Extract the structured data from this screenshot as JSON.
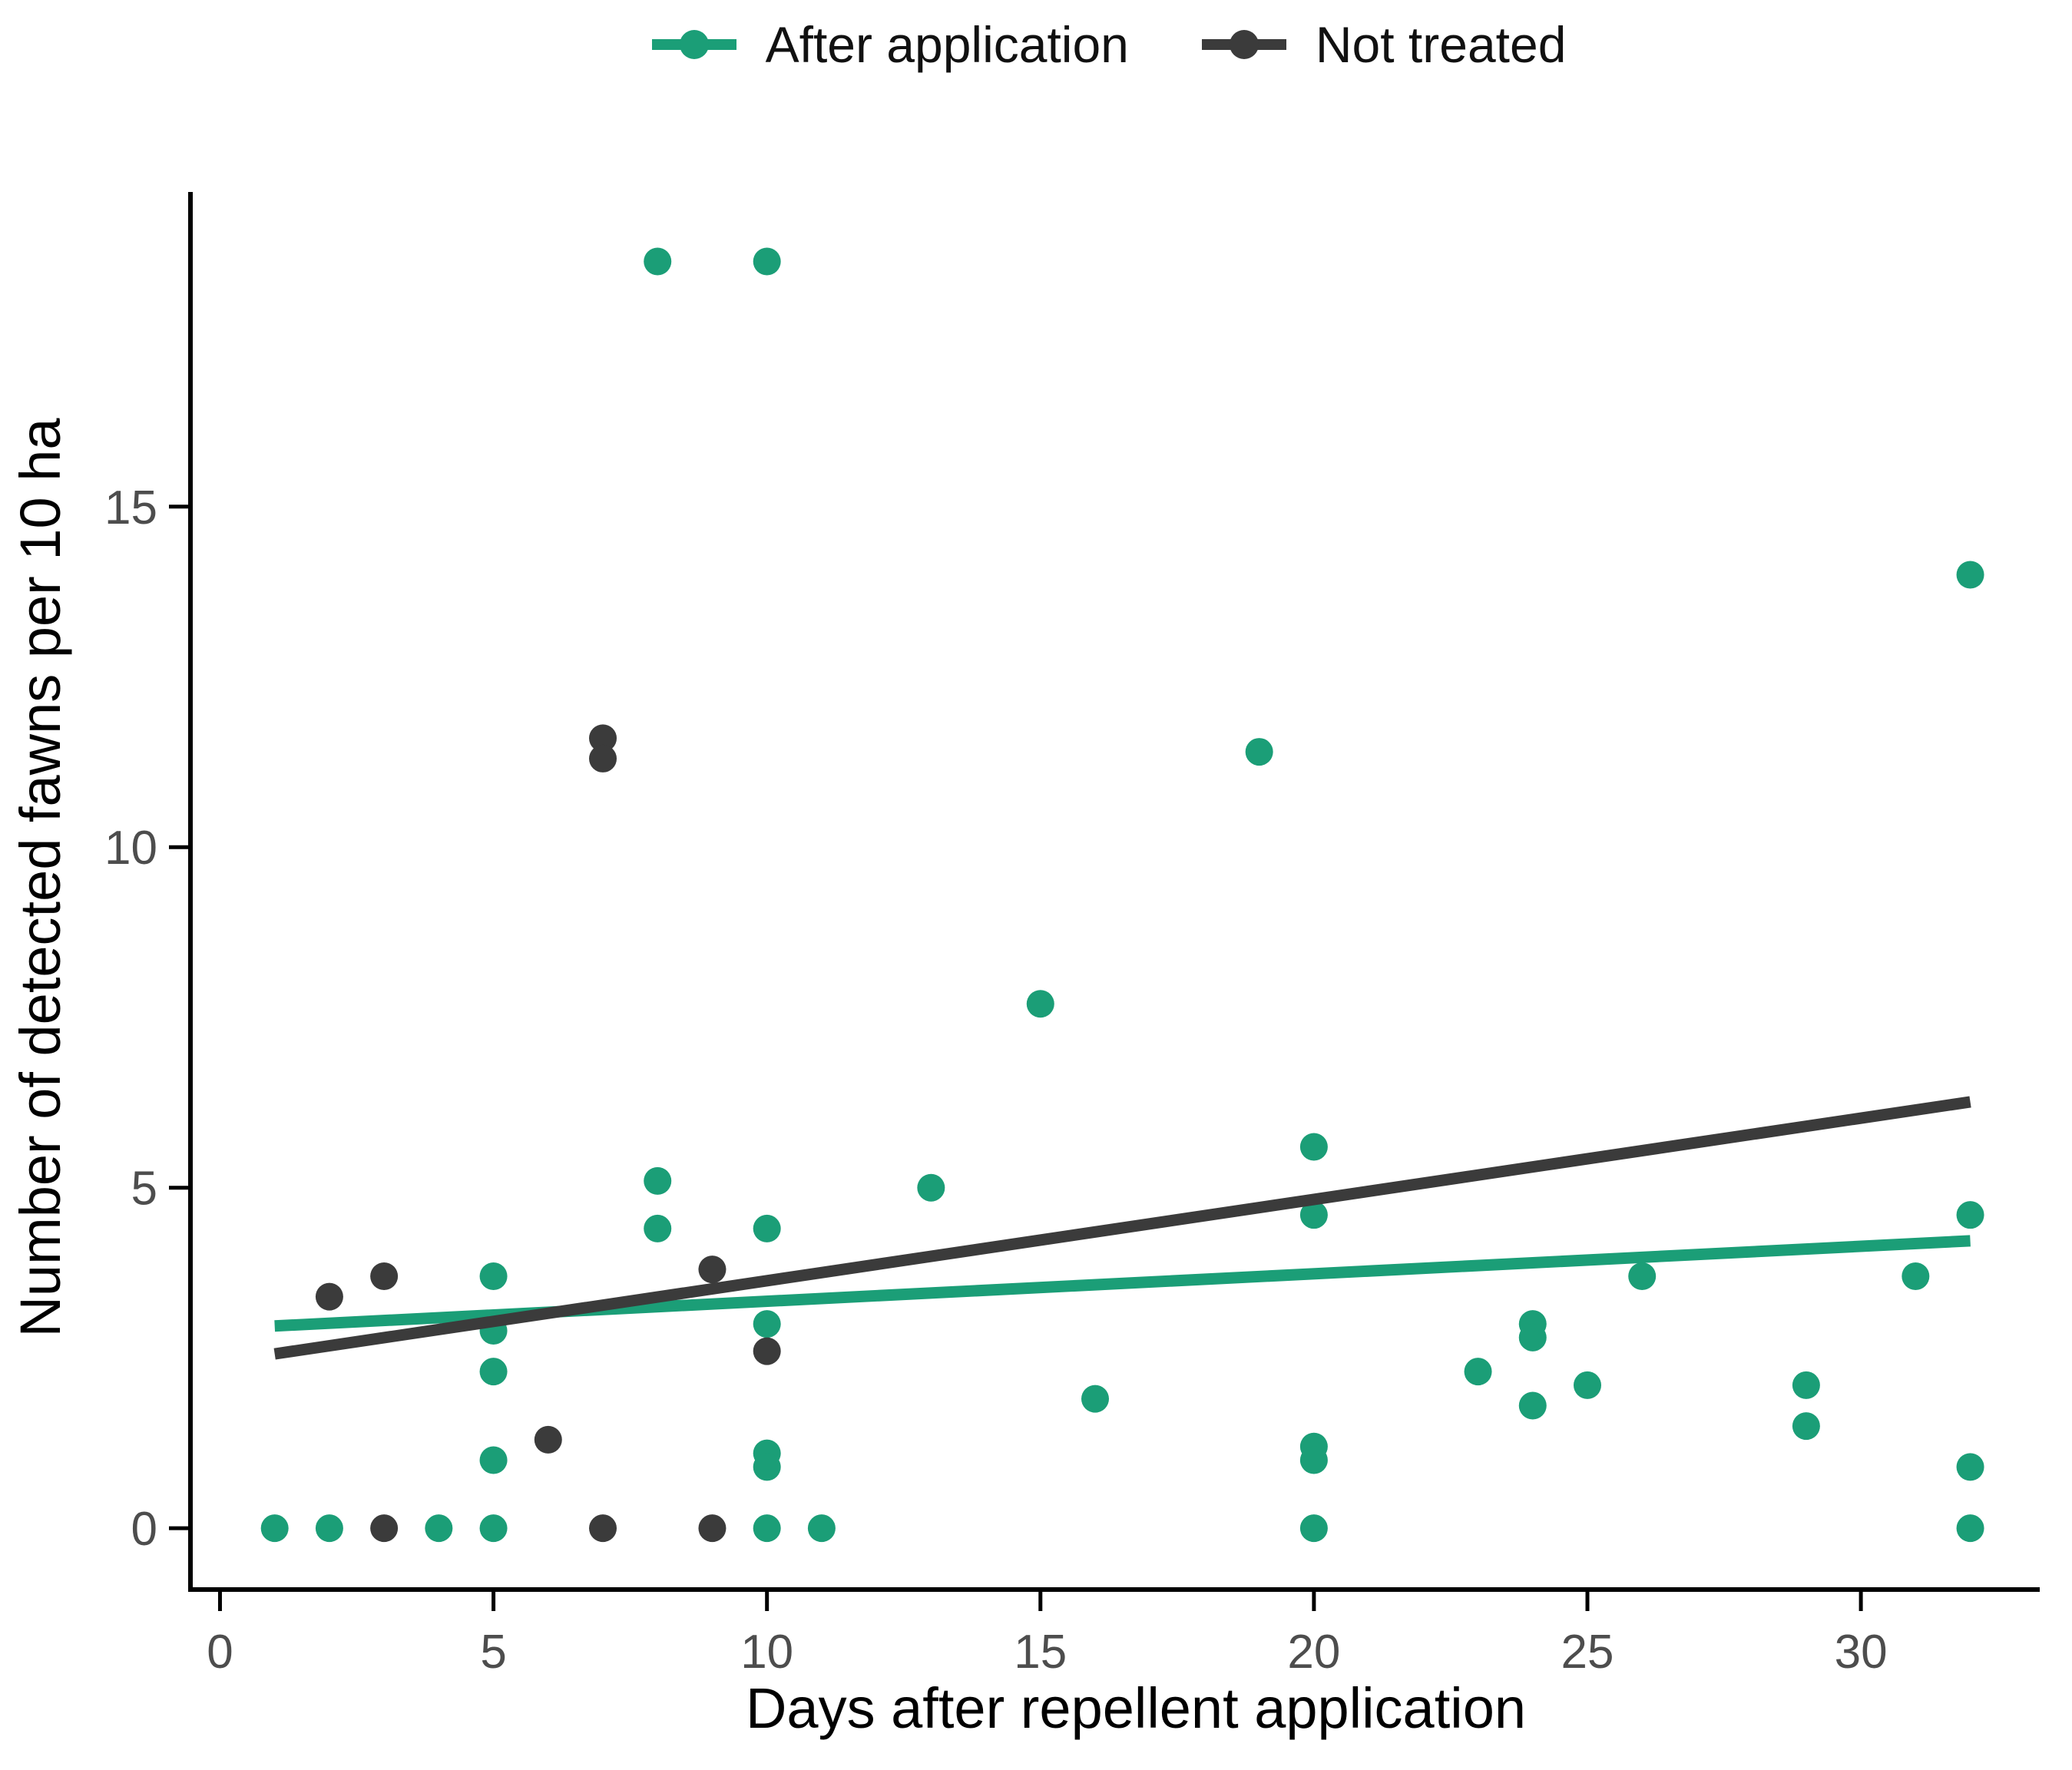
{
  "legend": {
    "items": [
      {
        "label": "After application",
        "color": "#1b9e77"
      },
      {
        "label": "Not treated",
        "color": "#3b3b3b"
      }
    ]
  },
  "chart_data": {
    "type": "scatter",
    "title": "",
    "xlabel": "Days after repellent application",
    "ylabel": "Number of detected fawns per 10 ha",
    "xlim": [
      -0.54,
      33.27
    ],
    "ylim": [
      -0.9,
      19.62
    ],
    "x_ticks": [
      0,
      5,
      10,
      15,
      20,
      25,
      30
    ],
    "y_ticks": [
      0,
      5,
      10,
      15
    ],
    "grid": false,
    "legend_position": "top",
    "series": [
      {
        "name": "After application",
        "color": "#1b9e77",
        "points": [
          [
            1,
            0
          ],
          [
            2,
            0
          ],
          [
            4,
            0
          ],
          [
            5,
            0
          ],
          [
            5,
            1.0
          ],
          [
            5,
            2.3
          ],
          [
            5,
            2.9
          ],
          [
            5,
            3.7
          ],
          [
            8,
            18.6
          ],
          [
            10,
            18.6
          ],
          [
            8,
            5.1
          ],
          [
            8,
            4.4
          ],
          [
            10,
            4.4
          ],
          [
            10,
            3.0
          ],
          [
            10,
            1.1
          ],
          [
            10,
            0.9
          ],
          [
            10,
            0
          ],
          [
            11,
            0
          ],
          [
            13,
            5.0
          ],
          [
            15,
            7.7
          ],
          [
            16,
            1.9
          ],
          [
            19,
            11.4
          ],
          [
            20,
            5.6
          ],
          [
            20,
            4.6
          ],
          [
            20,
            1.2
          ],
          [
            20,
            1.0
          ],
          [
            20,
            0
          ],
          [
            23,
            2.3
          ],
          [
            24,
            3.0
          ],
          [
            24,
            2.8
          ],
          [
            24,
            1.8
          ],
          [
            25,
            2.1
          ],
          [
            26,
            3.7
          ],
          [
            29,
            2.1
          ],
          [
            29,
            1.5
          ],
          [
            31,
            3.7
          ],
          [
            32,
            14.0
          ],
          [
            32,
            4.6
          ],
          [
            32,
            0.9
          ],
          [
            32,
            0
          ]
        ],
        "trend_line": {
          "x_start": 1,
          "y_start": 2.97,
          "x_end": 32,
          "y_end": 4.22
        }
      },
      {
        "name": "Not treated",
        "color": "#3b3b3b",
        "points": [
          [
            2,
            3.4
          ],
          [
            3,
            3.7
          ],
          [
            3,
            0
          ],
          [
            6,
            1.3
          ],
          [
            7,
            0
          ],
          [
            7,
            11.6
          ],
          [
            7,
            11.3
          ],
          [
            9,
            3.8
          ],
          [
            9,
            0
          ],
          [
            10,
            2.6
          ]
        ],
        "trend_line": {
          "x_start": 1,
          "y_start": 2.56,
          "x_end": 32,
          "y_end": 6.26
        }
      }
    ]
  }
}
